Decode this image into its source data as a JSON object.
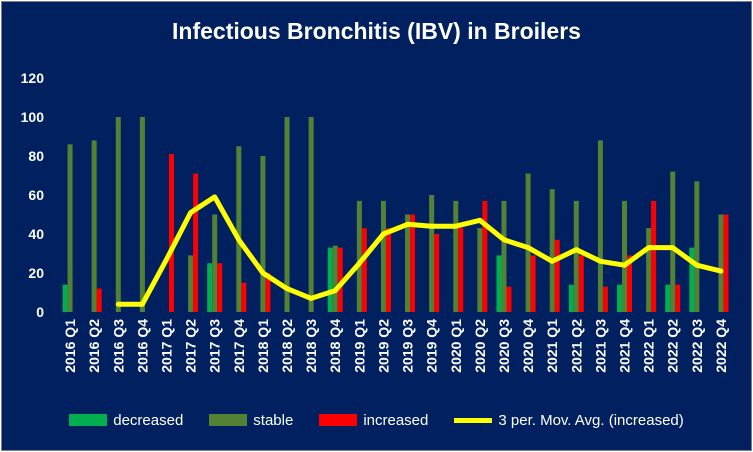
{
  "chart_data": {
    "type": "bar",
    "title": "Infectious Bronchitis (IBV) in Broilers",
    "xlabel": "",
    "ylabel": "",
    "ylim": [
      0,
      120
    ],
    "yticks": [
      0,
      20,
      40,
      60,
      80,
      100,
      120
    ],
    "grid": false,
    "legend_position": "bottom",
    "categories": [
      "2016 Q1",
      "2016 Q2",
      "2016 Q3",
      "2016 Q4",
      "2017 Q1",
      "2017 Q2",
      "2017 Q3",
      "2017 Q4",
      "2018 Q1",
      "2018 Q2",
      "2018 Q3",
      "2018 Q4",
      "2019 Q1",
      "2019 Q2",
      "2019 Q3",
      "2019 Q4",
      "2020 Q1",
      "2020 Q2",
      "2020 Q3",
      "2020 Q4",
      "2021 Q1",
      "2021 Q2",
      "2021 Q3",
      "2021 Q4",
      "2022 Q1",
      "2022 Q2",
      "2022 Q3",
      "2022 Q4"
    ],
    "series": [
      {
        "name": "decreased",
        "kind": "bar",
        "color": "#00b050",
        "values": [
          14,
          0,
          0,
          0,
          0,
          0,
          25,
          0,
          0,
          0,
          0,
          33,
          0,
          0,
          0,
          0,
          0,
          0,
          29,
          0,
          0,
          14,
          0,
          14,
          0,
          14,
          33,
          0
        ]
      },
      {
        "name": "stable",
        "kind": "bar",
        "color": "#548235",
        "values": [
          86,
          88,
          100,
          100,
          0,
          29,
          50,
          85,
          80,
          100,
          100,
          34,
          57,
          57,
          50,
          60,
          57,
          43,
          57,
          71,
          63,
          57,
          88,
          57,
          43,
          72,
          67,
          50
        ]
      },
      {
        "name": "increased",
        "kind": "bar",
        "color": "#ff0000",
        "values": [
          0,
          12,
          0,
          0,
          81,
          71,
          25,
          15,
          20,
          0,
          0,
          33,
          43,
          43,
          50,
          40,
          43,
          57,
          13,
          29,
          37,
          29,
          13,
          29,
          57,
          14,
          0,
          50
        ]
      },
      {
        "name": "3 per. Mov. Avg. (increased)",
        "kind": "line",
        "color": "#ffff00",
        "values": [
          null,
          null,
          4,
          4,
          27,
          51,
          59,
          37,
          20,
          12,
          7,
          11,
          25,
          40,
          45,
          44,
          44,
          47,
          37,
          33,
          26,
          32,
          26,
          24,
          33,
          33,
          24,
          21
        ]
      }
    ]
  }
}
